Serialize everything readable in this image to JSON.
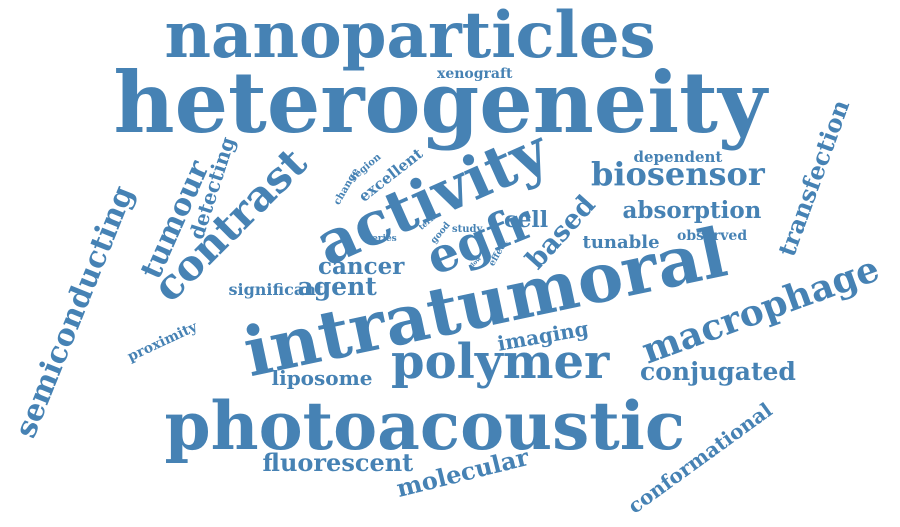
{
  "word_cloud": {
    "color": "#4682b4",
    "words": [
      "nanoparticles",
      "heterogeneity",
      "xenograft",
      "activity",
      "biosensor",
      "dependent",
      "egfr",
      "intratumoral",
      "photoacoustic",
      "polymer",
      "macrophage",
      "conjugated",
      "semiconducting",
      "contrast",
      "tumour",
      "detecting",
      "transfection",
      "absorption",
      "based",
      "cell",
      "tunable",
      "observed",
      "cancer",
      "agent",
      "significant",
      "proximity",
      "imaging",
      "liposome",
      "fluorescent",
      "molecular",
      "conformational",
      "change",
      "region",
      "excellent",
      "term",
      "good",
      "study",
      "series",
      "effect",
      "low"
    ]
  }
}
